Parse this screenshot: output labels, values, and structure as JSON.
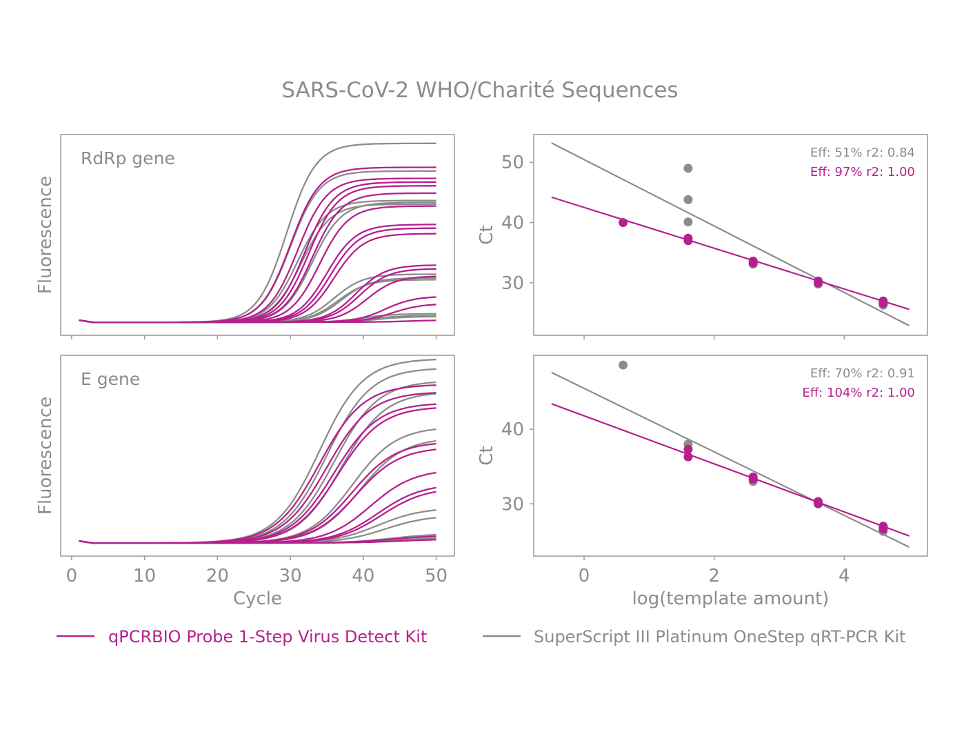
{
  "title": "SARS-CoV-2 WHO/Charité Sequences",
  "colors": {
    "qpcrbio": "#b5208e",
    "superscript": "#8c8c8c",
    "text": "#8c8c8c",
    "frame": "#999999"
  },
  "legend": [
    {
      "label": "qPCRBIO Probe 1-Step Virus Detect Kit",
      "color": "#b5208e",
      "key": "qpcrbio"
    },
    {
      "label": "SuperScript III Platinum OneStep qRT-PCR Kit",
      "color": "#8c8c8c",
      "key": "superscript"
    }
  ],
  "chart_data": [
    {
      "type": "line",
      "panel": "top-left",
      "label": "RdRp gene",
      "ylabel": "Fluorescence",
      "xlabel": "",
      "xlim": [
        -1.5,
        52.5
      ],
      "xticks": [
        0,
        10,
        20,
        30,
        40,
        50
      ],
      "ylim": [
        -0.07,
        1.02
      ],
      "series": [
        {
          "kit": "superscript",
          "curves": [
            [
              29.5,
              0.97
            ],
            [
              30,
              0.82
            ],
            [
              31,
              0.66
            ],
            [
              31.5,
              0.64
            ],
            [
              33,
              0.65
            ],
            [
              36,
              0.26
            ],
            [
              36.5,
              0.23
            ],
            [
              37,
              0.24
            ],
            [
              40,
              0.045
            ],
            [
              41,
              0.035
            ],
            [
              42,
              0.03
            ]
          ]
        },
        {
          "kit": "qpcrbio",
          "curves": [
            [
              30,
              0.84
            ],
            [
              31,
              0.78
            ],
            [
              32,
              0.76
            ],
            [
              32.5,
              0.74
            ],
            [
              33,
              0.7
            ],
            [
              34,
              0.63
            ],
            [
              35,
              0.53
            ],
            [
              35.5,
              0.51
            ],
            [
              36,
              0.48
            ],
            [
              39,
              0.31
            ],
            [
              39.5,
              0.29
            ],
            [
              40.5,
              0.25
            ],
            [
              43,
              0.14
            ],
            [
              44,
              0.1
            ],
            [
              46,
              0.01
            ]
          ]
        }
      ]
    },
    {
      "type": "scatter",
      "panel": "top-right",
      "ylabel": "Ct",
      "xlabel": "",
      "xlim": [
        -0.775,
        5.28
      ],
      "ylim": [
        21.3,
        54.6
      ],
      "yticks": [
        30,
        40,
        50
      ],
      "xticks": [
        0,
        2,
        4
      ],
      "annotations": [
        {
          "text": "Eff: 51% r2: 0.84",
          "kit": "superscript"
        },
        {
          "text": "Eff: 97% r2: 1.00",
          "kit": "qpcrbio"
        }
      ],
      "series": [
        {
          "kit": "superscript",
          "points": [
            [
              1.6,
              49.0
            ],
            [
              1.6,
              43.8
            ],
            [
              1.6,
              40.1
            ],
            [
              2.6,
              33.1
            ],
            [
              3.6,
              29.8
            ],
            [
              4.6,
              26.3
            ]
          ],
          "fit": [
            [
              -0.5,
              53.2
            ],
            [
              5,
              22.9
            ]
          ]
        },
        {
          "kit": "qpcrbio",
          "points": [
            [
              0.6,
              40.0
            ],
            [
              1.6,
              37.4
            ],
            [
              1.6,
              37.0
            ],
            [
              2.6,
              33.6
            ],
            [
              2.6,
              33.3
            ],
            [
              3.6,
              30.3
            ],
            [
              3.6,
              30.0
            ],
            [
              4.6,
              27.0
            ],
            [
              4.6,
              26.6
            ]
          ],
          "fit": [
            [
              -0.5,
              44.2
            ],
            [
              5,
              25.6
            ]
          ]
        }
      ]
    },
    {
      "type": "line",
      "panel": "bottom-left",
      "label": "E gene",
      "ylabel": "Fluorescence",
      "xlabel": "Cycle",
      "xlim": [
        -1.5,
        52.5
      ],
      "xticks": [
        0,
        10,
        20,
        30,
        40,
        50
      ],
      "ylim": [
        -0.07,
        1.02
      ],
      "series": [
        {
          "kit": "superscript",
          "curves": [
            [
              34,
              1.0
            ],
            [
              35,
              0.95
            ],
            [
              36,
              0.88
            ],
            [
              37,
              0.82
            ],
            [
              38.5,
              0.63
            ],
            [
              39.5,
              0.57
            ],
            [
              42,
              0.19
            ],
            [
              43,
              0.15
            ],
            [
              44,
              0.05
            ],
            [
              45,
              0.03
            ]
          ]
        },
        {
          "kit": "qpcrbio",
          "curves": [
            [
              34,
              0.86
            ],
            [
              35,
              0.82
            ],
            [
              36,
              0.76
            ],
            [
              36.5,
              0.74
            ],
            [
              38.5,
              0.55
            ],
            [
              39,
              0.52
            ],
            [
              41,
              0.4
            ],
            [
              42,
              0.32
            ],
            [
              42.5,
              0.3
            ],
            [
              44,
              0.04
            ],
            [
              45,
              0.02
            ]
          ]
        }
      ]
    },
    {
      "type": "scatter",
      "panel": "bottom-right",
      "ylabel": "Ct",
      "xlabel": "log(template amount)",
      "xlim": [
        -0.775,
        5.28
      ],
      "ylim": [
        23.0,
        49.9
      ],
      "yticks": [
        30,
        40
      ],
      "xticks": [
        0,
        2,
        4
      ],
      "annotations": [
        {
          "text": "Eff: 70% r2: 0.91",
          "kit": "superscript"
        },
        {
          "text": "Eff: 104% r2: 1.00",
          "kit": "qpcrbio"
        }
      ],
      "series": [
        {
          "kit": "superscript",
          "points": [
            [
              0.6,
              48.6
            ],
            [
              1.6,
              38.0
            ],
            [
              2.6,
              33.0
            ],
            [
              3.6,
              30.1
            ],
            [
              4.6,
              26.3
            ]
          ],
          "fit": [
            [
              -0.5,
              47.6
            ],
            [
              5,
              24.2
            ]
          ]
        },
        {
          "kit": "qpcrbio",
          "points": [
            [
              1.6,
              37.3
            ],
            [
              1.6,
              36.3
            ],
            [
              2.6,
              33.6
            ],
            [
              2.6,
              33.3
            ],
            [
              3.6,
              30.3
            ],
            [
              3.6,
              30.0
            ],
            [
              4.6,
              27.0
            ],
            [
              4.6,
              26.6
            ]
          ],
          "fit": [
            [
              -0.5,
              43.4
            ],
            [
              5,
              25.7
            ]
          ]
        }
      ]
    }
  ]
}
